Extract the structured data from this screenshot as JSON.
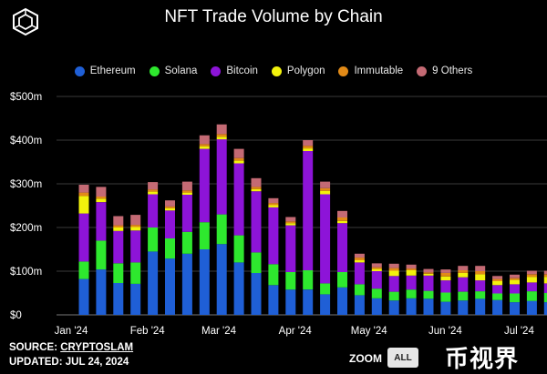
{
  "title": "NFT Trade Volume by Chain",
  "source": {
    "prefix": "SOURCE:",
    "name": "CRYPTOSLAM"
  },
  "updated": "UPDATED: JUL 24, 2024",
  "zoom": {
    "label": "ZOOM",
    "button": "ALL"
  },
  "watermark": "币视界",
  "colors": {
    "background": "#000000",
    "Ethereum": "#1f5fd6",
    "Solana": "#2ee82e",
    "Bitcoin": "#8d14d8",
    "Polygon": "#f2f20c",
    "Immutable": "#e28a17",
    "9 Others": "#c46a74",
    "grid": "#3a3a3a"
  },
  "chart_data": {
    "type": "bar",
    "stacked": true,
    "title": "NFT Trade Volume by Chain",
    "legend_position": "top",
    "grid": true,
    "y_unit_prefix": "$",
    "ylim": [
      0,
      500
    ],
    "yticks": [
      "$0",
      "$100m",
      "$200m",
      "$300m",
      "$400m",
      "$500m"
    ],
    "xticks": [
      "Jan '24",
      "Feb '24",
      "Mar '24",
      "Apr '24",
      "May '24",
      "Jun '24",
      "Jul '24"
    ],
    "series_names": [
      "Ethereum",
      "Solana",
      "Bitcoin",
      "Polygon",
      "Immutable",
      "9 Others"
    ],
    "weeks": [
      {
        "week": "2024-01-01",
        "Ethereum": 82,
        "Solana": 40,
        "Bitcoin": 110,
        "Polygon": 40,
        "Immutable": 8,
        "9 Others": 18
      },
      {
        "week": "2024-01-08",
        "Ethereum": 104,
        "Solana": 66,
        "Bitcoin": 88,
        "Polygon": 8,
        "Immutable": 5,
        "9 Others": 22
      },
      {
        "week": "2024-01-15",
        "Ethereum": 73,
        "Solana": 45,
        "Bitcoin": 74,
        "Polygon": 8,
        "Immutable": 5,
        "9 Others": 21
      },
      {
        "week": "2024-01-22",
        "Ethereum": 71,
        "Solana": 49,
        "Bitcoin": 73,
        "Polygon": 8,
        "Immutable": 5,
        "9 Others": 23
      },
      {
        "week": "2024-01-29",
        "Ethereum": 145,
        "Solana": 55,
        "Bitcoin": 76,
        "Polygon": 6,
        "Immutable": 5,
        "9 Others": 17
      },
      {
        "week": "2024-02-05",
        "Ethereum": 129,
        "Solana": 46,
        "Bitcoin": 64,
        "Polygon": 5,
        "Immutable": 4,
        "9 Others": 14
      },
      {
        "week": "2024-02-12",
        "Ethereum": 140,
        "Solana": 50,
        "Bitcoin": 85,
        "Polygon": 5,
        "Immutable": 5,
        "9 Others": 20
      },
      {
        "week": "2024-02-19",
        "Ethereum": 150,
        "Solana": 62,
        "Bitcoin": 168,
        "Polygon": 6,
        "Immutable": 5,
        "9 Others": 20
      },
      {
        "week": "2024-02-26",
        "Ethereum": 162,
        "Solana": 68,
        "Bitcoin": 172,
        "Polygon": 6,
        "Immutable": 6,
        "9 Others": 22
      },
      {
        "week": "2024-03-04",
        "Ethereum": 120,
        "Solana": 62,
        "Bitcoin": 165,
        "Polygon": 6,
        "Immutable": 6,
        "9 Others": 21
      },
      {
        "week": "2024-03-11",
        "Ethereum": 96,
        "Solana": 47,
        "Bitcoin": 140,
        "Polygon": 5,
        "Immutable": 5,
        "9 Others": 20
      },
      {
        "week": "2024-03-18",
        "Ethereum": 68,
        "Solana": 48,
        "Bitcoin": 130,
        "Polygon": 5,
        "Immutable": 5,
        "9 Others": 11
      },
      {
        "week": "2024-03-25",
        "Ethereum": 58,
        "Solana": 40,
        "Bitcoin": 107,
        "Polygon": 5,
        "Immutable": 4,
        "9 Others": 10
      },
      {
        "week": "2024-04-01",
        "Ethereum": 58,
        "Solana": 44,
        "Bitcoin": 273,
        "Polygon": 6,
        "Immutable": 6,
        "9 Others": 13
      },
      {
        "week": "2024-04-08",
        "Ethereum": 47,
        "Solana": 25,
        "Bitcoin": 204,
        "Polygon": 8,
        "Immutable": 6,
        "9 Others": 15
      },
      {
        "week": "2024-04-15",
        "Ethereum": 63,
        "Solana": 35,
        "Bitcoin": 112,
        "Polygon": 5,
        "Immutable": 8,
        "9 Others": 15
      },
      {
        "week": "2024-04-22",
        "Ethereum": 45,
        "Solana": 25,
        "Bitcoin": 50,
        "Polygon": 5,
        "Immutable": 6,
        "9 Others": 9
      },
      {
        "week": "2024-04-29",
        "Ethereum": 38,
        "Solana": 22,
        "Bitcoin": 40,
        "Polygon": 5,
        "Immutable": 4,
        "9 Others": 9
      },
      {
        "week": "2024-05-06",
        "Ethereum": 33,
        "Solana": 20,
        "Bitcoin": 36,
        "Polygon": 12,
        "Immutable": 6,
        "9 Others": 10
      },
      {
        "week": "2024-05-13",
        "Ethereum": 38,
        "Solana": 20,
        "Bitcoin": 32,
        "Polygon": 12,
        "Immutable": 4,
        "9 Others": 9
      },
      {
        "week": "2024-05-20",
        "Ethereum": 37,
        "Solana": 18,
        "Bitcoin": 35,
        "Polygon": 4,
        "Immutable": 3,
        "9 Others": 8
      },
      {
        "week": "2024-05-27",
        "Ethereum": 30,
        "Solana": 21,
        "Bitcoin": 28,
        "Polygon": 9,
        "Immutable": 8,
        "9 Others": 8
      },
      {
        "week": "2024-06-03",
        "Ethereum": 33,
        "Solana": 20,
        "Bitcoin": 33,
        "Polygon": 10,
        "Immutable": 6,
        "9 Others": 10
      },
      {
        "week": "2024-06-10",
        "Ethereum": 37,
        "Solana": 17,
        "Bitcoin": 25,
        "Polygon": 14,
        "Immutable": 7,
        "9 Others": 12
      },
      {
        "week": "2024-06-17",
        "Ethereum": 34,
        "Solana": 15,
        "Bitcoin": 19,
        "Polygon": 9,
        "Immutable": 5,
        "9 Others": 7
      },
      {
        "week": "2024-06-24",
        "Ethereum": 29,
        "Solana": 20,
        "Bitcoin": 21,
        "Polygon": 10,
        "Immutable": 4,
        "9 Others": 8
      },
      {
        "week": "2024-07-01",
        "Ethereum": 32,
        "Solana": 22,
        "Bitcoin": 20,
        "Polygon": 13,
        "Immutable": 6,
        "9 Others": 8
      },
      {
        "week": "2024-07-08",
        "Ethereum": 29,
        "Solana": 21,
        "Bitcoin": 22,
        "Polygon": 15,
        "Immutable": 6,
        "9 Others": 8
      },
      {
        "week": "2024-07-15",
        "Ethereum": 30,
        "Solana": 20,
        "Bitcoin": 18,
        "Polygon": 16,
        "Immutable": 7,
        "9 Others": 8
      }
    ]
  }
}
